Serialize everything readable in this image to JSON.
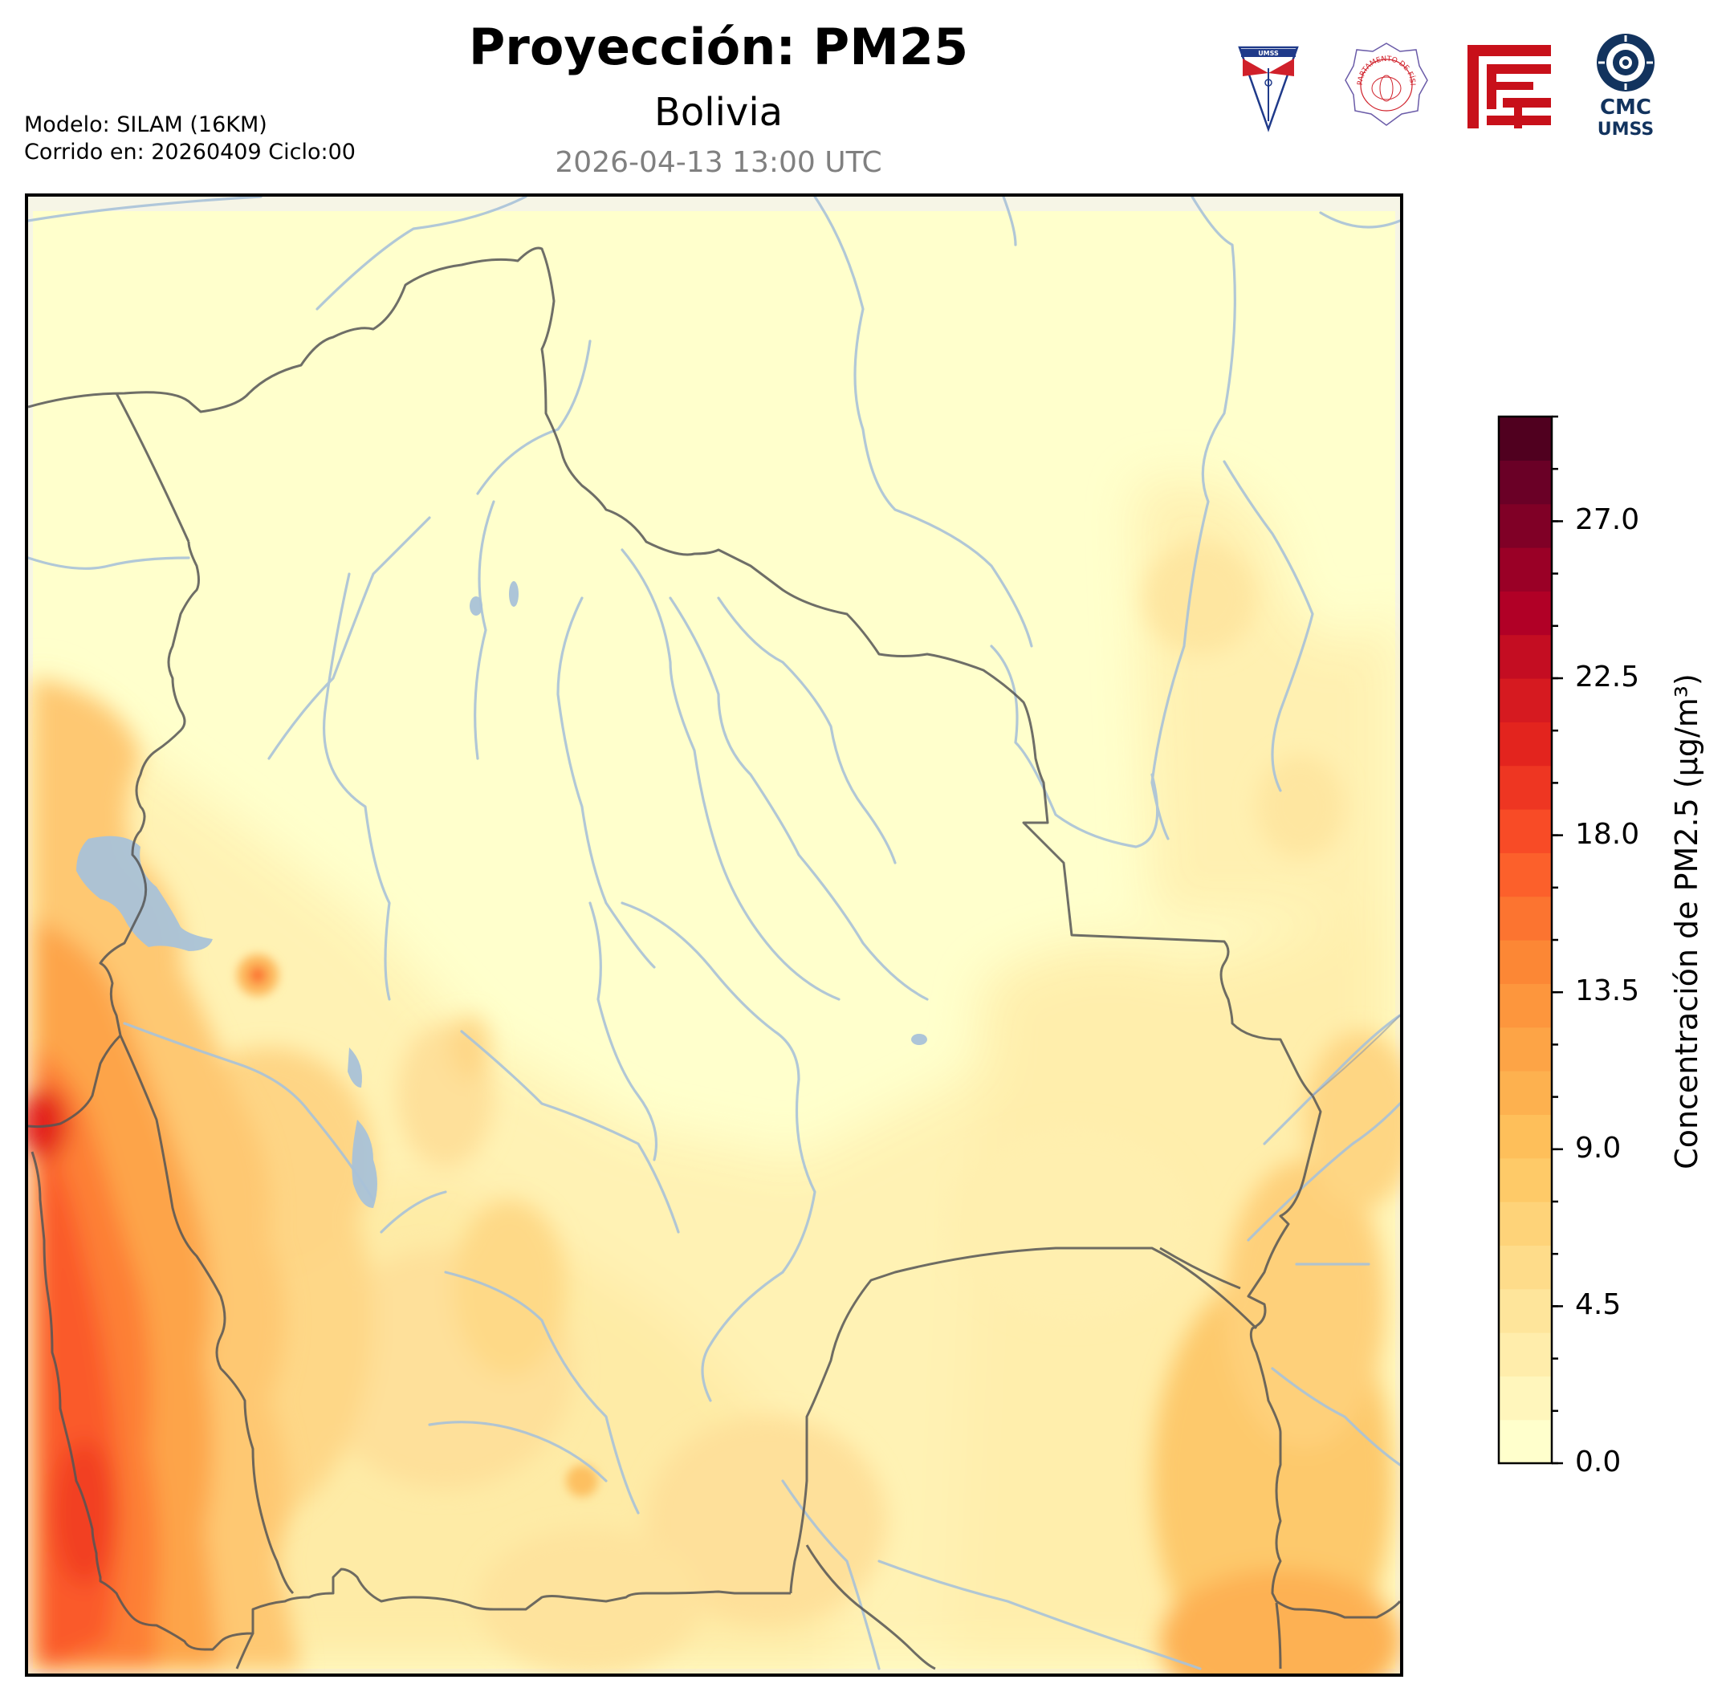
{
  "header": {
    "title": "Proyección: PM25",
    "subtitle": "Bolivia",
    "datetime": "2026-04-13 13:00 UTC",
    "model_line": "Modelo: SILAM (16KM)",
    "run_line": "Corrido en: 20260409 Ciclo:00"
  },
  "logos": {
    "umss_text": "UMSS",
    "physics_text": "DEPARTAMENTO DE FÍSICA",
    "cmc_text": "CMC",
    "cmc_sub": "UMSS",
    "colors": {
      "umss_red": "#d0202a",
      "umss_blue": "#1f3a8a",
      "fcyt_red": "#c8101a",
      "cmc_navy": "#12335e"
    }
  },
  "colorbar": {
    "label": "Concentración de PM2.5 (μg/m³)",
    "min": 0,
    "max": 30,
    "tick_labels": [
      "0.0",
      "4.5",
      "9.0",
      "13.5",
      "18.0",
      "22.5",
      "27.0"
    ],
    "tick_values": [
      0,
      4.5,
      9,
      13.5,
      18,
      22.5,
      27
    ],
    "colors": [
      "#ffffcc",
      "#fff6bc",
      "#ffedab",
      "#fee59b",
      "#fedc8a",
      "#fed379",
      "#feca68",
      "#febf5a",
      "#fdb14f",
      "#fda446",
      "#fd963d",
      "#fc8735",
      "#fc7430",
      "#fc602b",
      "#f84b26",
      "#ee3622",
      "#e3241e",
      "#d61a20",
      "#c40d22",
      "#b10026",
      "#9a0026",
      "#800026",
      "#6a0026",
      "#50001f"
    ]
  },
  "map": {
    "background_color": "#ffffcc",
    "border_color": "#555555",
    "river_color": "#a9c2d8",
    "lake_color": "#a9c2d8"
  }
}
